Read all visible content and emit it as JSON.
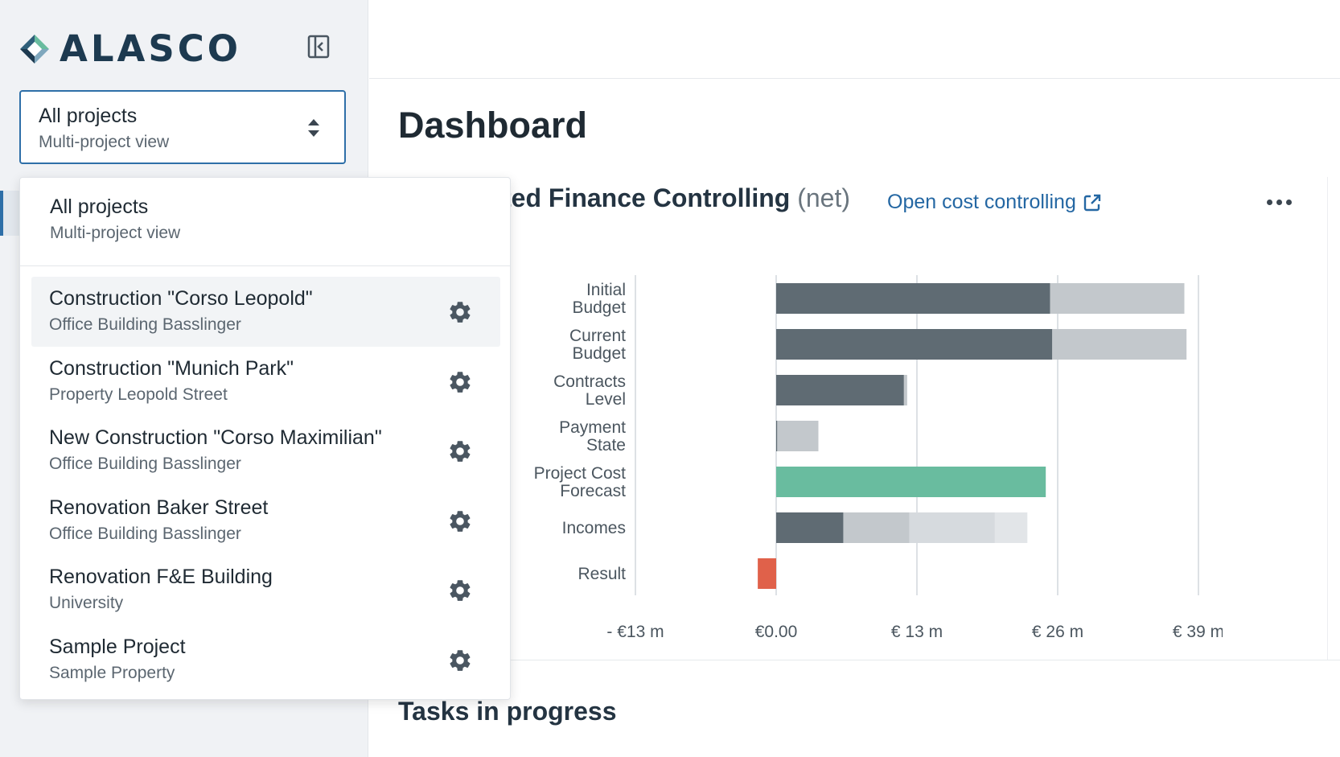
{
  "brand": {
    "name": "ALASCO"
  },
  "project_selector": {
    "title": "All projects",
    "subtitle": "Multi-project view"
  },
  "page": {
    "title": "Dashboard"
  },
  "widget": {
    "title_visible": "ted Finance Controlling",
    "title_suffix": "(net)",
    "link_label": "Open cost controlling"
  },
  "dropdown": {
    "all": {
      "title": "All projects",
      "subtitle": "Multi-project view"
    },
    "items": [
      {
        "title": "Construction \"Corso Leopold\"",
        "subtitle": "Office Building Basslinger"
      },
      {
        "title": "Construction \"Munich Park\"",
        "subtitle": "Property Leopold Street"
      },
      {
        "title": "New Construction \"Corso Maximilian\"",
        "subtitle": "Office Building Basslinger"
      },
      {
        "title": "Renovation Baker Street",
        "subtitle": "Office Building Basslinger"
      },
      {
        "title": "Renovation F&E Building",
        "subtitle": "University"
      },
      {
        "title": "Sample Project",
        "subtitle": "Sample Property"
      }
    ]
  },
  "sections": {
    "tasks_title": "Tasks in progress"
  },
  "colors": {
    "dark": "#5f6b73",
    "light": "#c3c8cc",
    "lighter": "#d6dade",
    "lightest": "#e2e5e8",
    "forecast": "#69bc9f",
    "result": "#e0614a",
    "grid": "#dde1e5"
  },
  "chart_data": {
    "type": "bar",
    "orientation": "horizontal",
    "stacked": true,
    "categories": [
      [
        "Initial",
        "Budget"
      ],
      [
        "Current",
        "Budget"
      ],
      [
        "Contracts",
        "Level"
      ],
      [
        "Payment",
        "State"
      ],
      [
        "Project Cost",
        "Forecast"
      ],
      [
        "Incomes"
      ],
      [
        "Result"
      ]
    ],
    "segments": [
      [
        {
          "value": 25.3,
          "color": "dark"
        },
        {
          "value": 12.4,
          "color": "light"
        }
      ],
      [
        {
          "value": 25.5,
          "color": "dark"
        },
        {
          "value": 12.4,
          "color": "light"
        }
      ],
      [
        {
          "value": 11.8,
          "color": "dark"
        },
        {
          "value": 0.3,
          "color": "light"
        }
      ],
      [
        {
          "value": 0.1,
          "color": "dark"
        },
        {
          "value": 3.8,
          "color": "light"
        }
      ],
      [
        {
          "value": 24.9,
          "color": "forecast"
        }
      ],
      [
        {
          "value": 6.2,
          "color": "dark"
        },
        {
          "value": 6.1,
          "color": "light"
        },
        {
          "value": 7.9,
          "color": "lighter"
        },
        {
          "value": 3.0,
          "color": "lightest"
        }
      ],
      [
        {
          "value": -1.7,
          "color": "result"
        }
      ]
    ],
    "xlim": [
      -13,
      39
    ],
    "ticks": [
      -13,
      0,
      13,
      26,
      39
    ],
    "tick_labels": [
      "- €13 m",
      "€0.00",
      "€ 13 m",
      "€ 26 m",
      "€ 39 m"
    ],
    "grid": true
  }
}
